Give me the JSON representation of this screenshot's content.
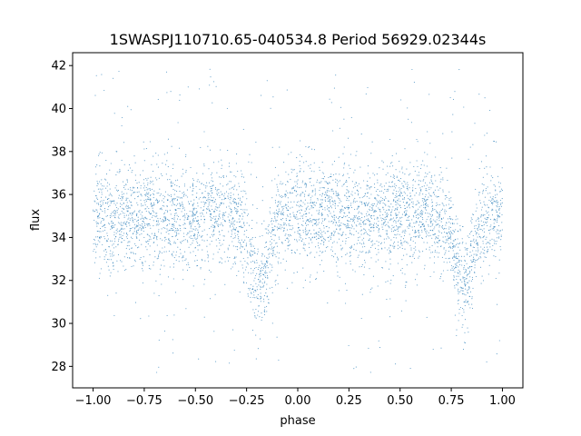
{
  "chart_data": {
    "type": "scatter",
    "title": "1SWASPJ110710.65-040534.8 Period 56929.02344s",
    "xlabel": "phase",
    "ylabel": "flux",
    "xlim": [
      -1.1,
      1.1
    ],
    "ylim": [
      27.0,
      42.6
    ],
    "x_ticks": [
      -1.0,
      -0.75,
      -0.5,
      -0.25,
      0.0,
      0.25,
      0.5,
      0.75,
      1.0
    ],
    "x_tick_labels": [
      "−1.00",
      "−0.75",
      "−0.50",
      "−0.25",
      "0.00",
      "0.25",
      "0.50",
      "0.75",
      "1.00"
    ],
    "y_ticks": [
      28,
      30,
      32,
      34,
      36,
      38,
      40,
      42
    ],
    "y_tick_labels": [
      "28",
      "30",
      "32",
      "34",
      "36",
      "38",
      "40",
      "42"
    ],
    "grid": false,
    "legend": "none",
    "marker_color": "#1f77b4",
    "series": [
      {
        "x_range": [
          -1.0,
          1.0
        ],
        "baseline_flux": 35.0,
        "flux_spread_sd": 1.2,
        "flux_range": [
          27.7,
          42.0
        ],
        "dips": [
          {
            "phase": -0.19,
            "depth": 3.0
          },
          {
            "phase": 0.81,
            "depth": 3.0
          }
        ]
      }
    ]
  }
}
